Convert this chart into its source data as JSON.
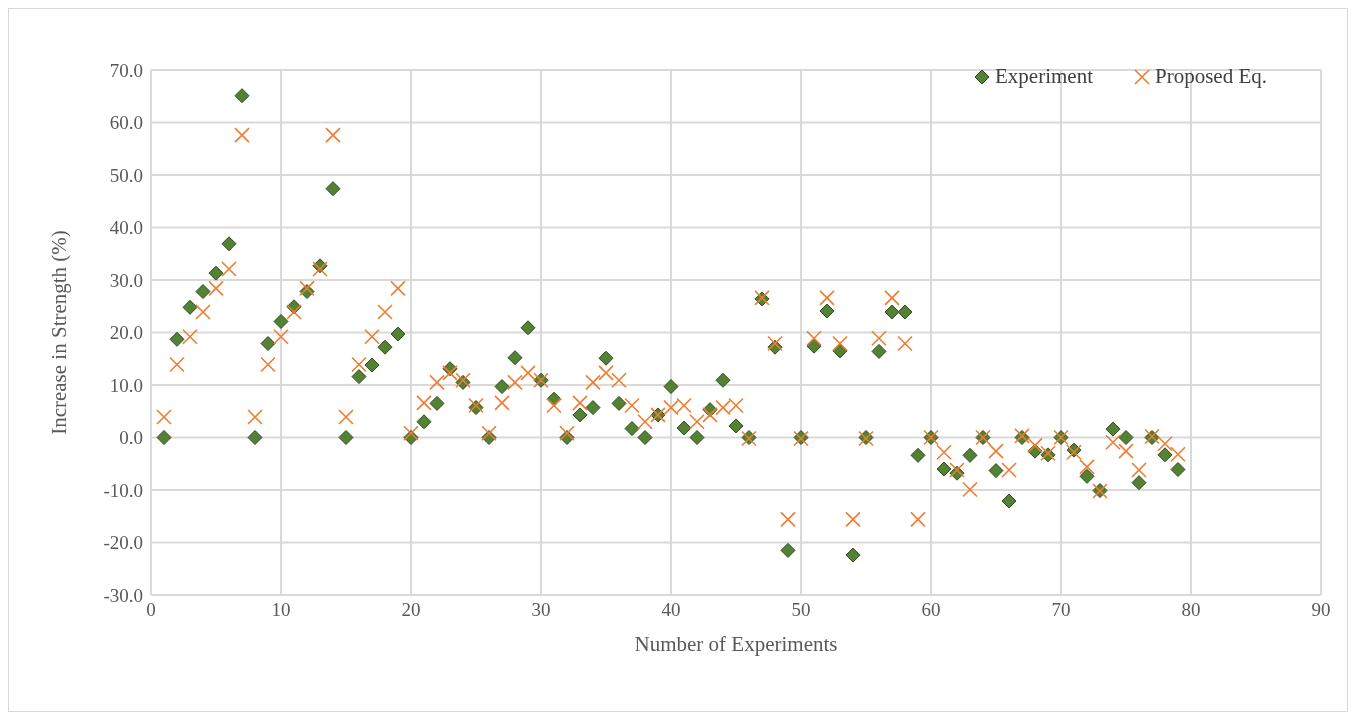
{
  "chart_data": {
    "type": "scatter",
    "xlabel": "Number of Experiments",
    "ylabel": "Increase in Strength (%)",
    "x": [
      1,
      2,
      3,
      4,
      5,
      6,
      7,
      8,
      9,
      10,
      11,
      12,
      13,
      14,
      15,
      16,
      17,
      18,
      19,
      20,
      21,
      22,
      23,
      24,
      25,
      26,
      27,
      28,
      29,
      30,
      31,
      32,
      33,
      34,
      35,
      36,
      37,
      38,
      39,
      40,
      41,
      42,
      43,
      44,
      45,
      46,
      47,
      48,
      49,
      50,
      51,
      52,
      53,
      54,
      55,
      56,
      57,
      58,
      59,
      60,
      61,
      62,
      63,
      64,
      65,
      66,
      67,
      68,
      69,
      70,
      71,
      72,
      73,
      74,
      75,
      76,
      77,
      78,
      79
    ],
    "series": [
      {
        "name": "Experiment",
        "color": "#548235",
        "marker": "diamond",
        "values": [
          0,
          18.7,
          24.8,
          27.8,
          31.3,
          36.9,
          65.1,
          0,
          17.9,
          22.1,
          24.9,
          27.8,
          32.7,
          47.4,
          0,
          11.6,
          13.8,
          17.2,
          19.7,
          0,
          3.0,
          6.5,
          13.1,
          10.5,
          5.7,
          0,
          9.7,
          15.2,
          20.9,
          10.9,
          7.3,
          0,
          4.3,
          5.7,
          15.1,
          6.5,
          1.7,
          0,
          4.3,
          9.7,
          1.8,
          0,
          5.3,
          10.9,
          2.2,
          0,
          26.4,
          17.2,
          -21.5,
          0,
          17.4,
          24.1,
          16.5,
          -22.4,
          0,
          16.4,
          23.9,
          23.9,
          -3.4,
          0,
          -6.0,
          -6.8,
          -3.4,
          0,
          -6.3,
          -12.1,
          0,
          -2.6,
          -3.3,
          0,
          -2.4,
          -7.4,
          -10.1,
          1.6,
          0,
          -8.6,
          0,
          -3.3,
          -6.1
        ]
      },
      {
        "name": "Proposed Eq.",
        "color": "#ed7d31",
        "marker": "cross",
        "values": [
          3.9,
          13.9,
          19.2,
          23.9,
          28.4,
          32.1,
          57.6,
          3.9,
          13.9,
          19.2,
          23.9,
          28.4,
          32.1,
          57.6,
          3.9,
          13.9,
          19.2,
          23.9,
          28.4,
          0.8,
          6.6,
          10.5,
          12.3,
          10.9,
          6.1,
          0.8,
          6.6,
          10.5,
          12.3,
          10.9,
          6.1,
          0.8,
          6.6,
          10.5,
          12.3,
          10.9,
          6.1,
          3.0,
          4.3,
          5.7,
          6.1,
          3.0,
          4.3,
          5.7,
          6.1,
          -0.2,
          26.6,
          17.9,
          -15.6,
          -0.2,
          18.9,
          26.6,
          17.9,
          -15.6,
          -0.2,
          18.9,
          26.6,
          17.9,
          -15.6,
          0,
          -2.8,
          -6.2,
          -9.9,
          0,
          -2.6,
          -6.2,
          0.3,
          -1.5,
          -3.0,
          0,
          -2.8,
          -5.6,
          -10.2,
          -0.9,
          -2.6,
          -6.2,
          0.2,
          -1.2,
          -3.2
        ]
      }
    ],
    "xlim": [
      0,
      90
    ],
    "xticks": [
      0,
      10,
      20,
      30,
      40,
      50,
      60,
      70,
      80,
      90
    ],
    "ylim": [
      -30,
      70
    ],
    "yticks": [
      {
        "value": -30,
        "label": "-30.0"
      },
      {
        "value": -20,
        "label": "-20.0"
      },
      {
        "value": -10,
        "label": "-10.0"
      },
      {
        "value": 0,
        "label": "0.0"
      },
      {
        "value": 10,
        "label": "10.0"
      },
      {
        "value": 20,
        "label": "20.0"
      },
      {
        "value": 30,
        "label": "30.0"
      },
      {
        "value": 40,
        "label": "40.0"
      },
      {
        "value": 50,
        "label": "50.0"
      },
      {
        "value": 60,
        "label": "60.0"
      },
      {
        "value": 70,
        "label": "70.0"
      }
    ],
    "grid": true,
    "legend": "top right"
  }
}
